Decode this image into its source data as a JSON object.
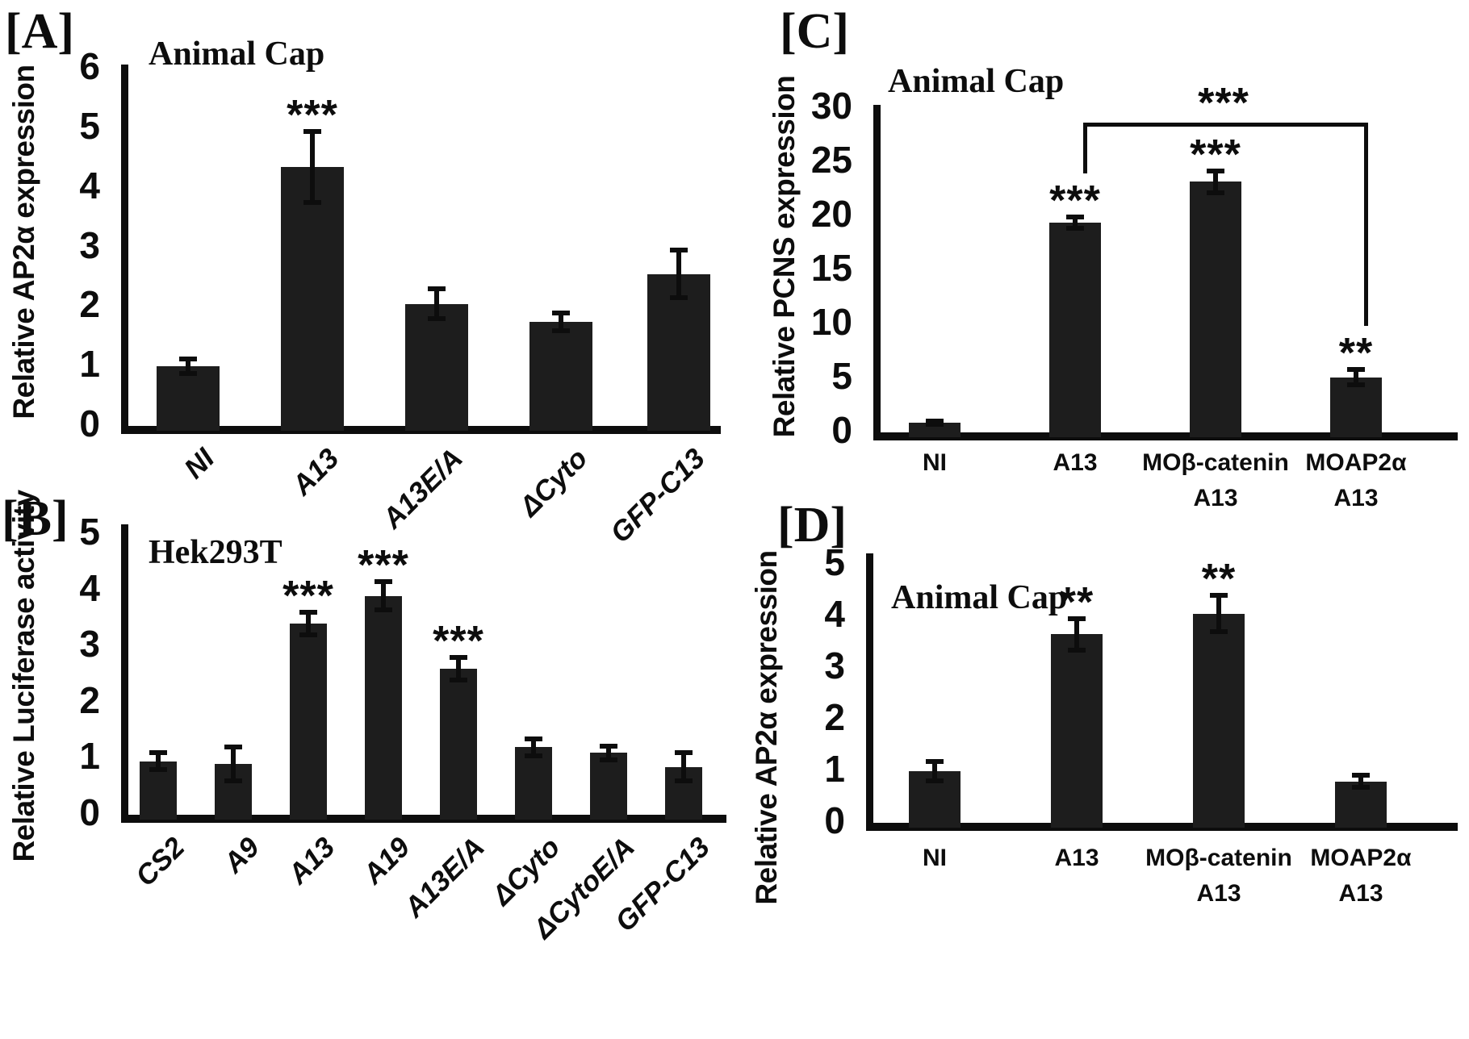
{
  "figure": {
    "background": "#ffffff",
    "bar_color": "#1d1d1d",
    "ink_color": "#0d0d0d"
  },
  "chart_data": [
    {
      "id": "A",
      "type": "bar",
      "panel_label": "[A]",
      "title": "Animal Cap",
      "ylabel": "Relative  AP2α expression",
      "ylim": [
        0,
        6
      ],
      "ytick_step": 1,
      "grid": false,
      "categories": [
        "NI",
        "A13",
        "A13E/A",
        "ΔCyto",
        "GFP-C13"
      ],
      "values": [
        1.0,
        4.35,
        2.05,
        1.75,
        2.55
      ],
      "errors": [
        0.12,
        0.6,
        0.25,
        0.15,
        0.4
      ],
      "significance": [
        "",
        "***",
        "",
        "",
        ""
      ],
      "xlabel_rotated": true
    },
    {
      "id": "B",
      "type": "bar",
      "panel_label": "[B]",
      "title": "Hek293T",
      "ylabel": "Relative Luciferase activity",
      "ylim": [
        0,
        5
      ],
      "ytick_step": 1,
      "grid": false,
      "categories": [
        "CS2",
        "A9",
        "A13",
        "A19",
        "A13E/A",
        "ΔCyto",
        "ΔCytoE/A",
        "GFP-C13"
      ],
      "values": [
        0.95,
        0.9,
        3.4,
        3.9,
        2.6,
        1.2,
        1.1,
        0.85
      ],
      "errors": [
        0.15,
        0.3,
        0.2,
        0.25,
        0.2,
        0.15,
        0.12,
        0.25
      ],
      "significance": [
        "",
        "",
        "***",
        "***",
        "***",
        "",
        "",
        ""
      ],
      "xlabel_rotated": true
    },
    {
      "id": "C",
      "type": "bar",
      "panel_label": "[C]",
      "title": "Animal Cap",
      "ylabel": "Relative PCNS expression",
      "ylim": [
        0,
        30
      ],
      "ytick_step": 5,
      "grid": false,
      "categories": [
        "NI",
        "A13",
        "MOβ-catenin\nA13",
        "MOAP2α\nA13"
      ],
      "values": [
        0.9,
        19.4,
        23.2,
        5.1
      ],
      "errors": [
        0.15,
        0.5,
        1.0,
        0.7
      ],
      "significance": [
        "",
        "***",
        "***",
        "**"
      ],
      "xlabel_rotated": false,
      "bracket": {
        "from_index": 1,
        "to_index": 3,
        "label": "***"
      }
    },
    {
      "id": "D",
      "type": "bar",
      "panel_label": "[D]",
      "title": "Animal Cap",
      "ylabel": "Relative AP2α expression",
      "ylim": [
        0,
        5
      ],
      "ytick_step": 1,
      "grid": false,
      "categories": [
        "NI",
        "A13",
        "MOβ-catenin\nA13",
        "MOAP2α\nA13"
      ],
      "values": [
        1.0,
        3.65,
        4.05,
        0.8
      ],
      "errors": [
        0.18,
        0.3,
        0.35,
        0.12
      ],
      "significance": [
        "",
        "**",
        "**",
        ""
      ],
      "xlabel_rotated": false
    }
  ]
}
